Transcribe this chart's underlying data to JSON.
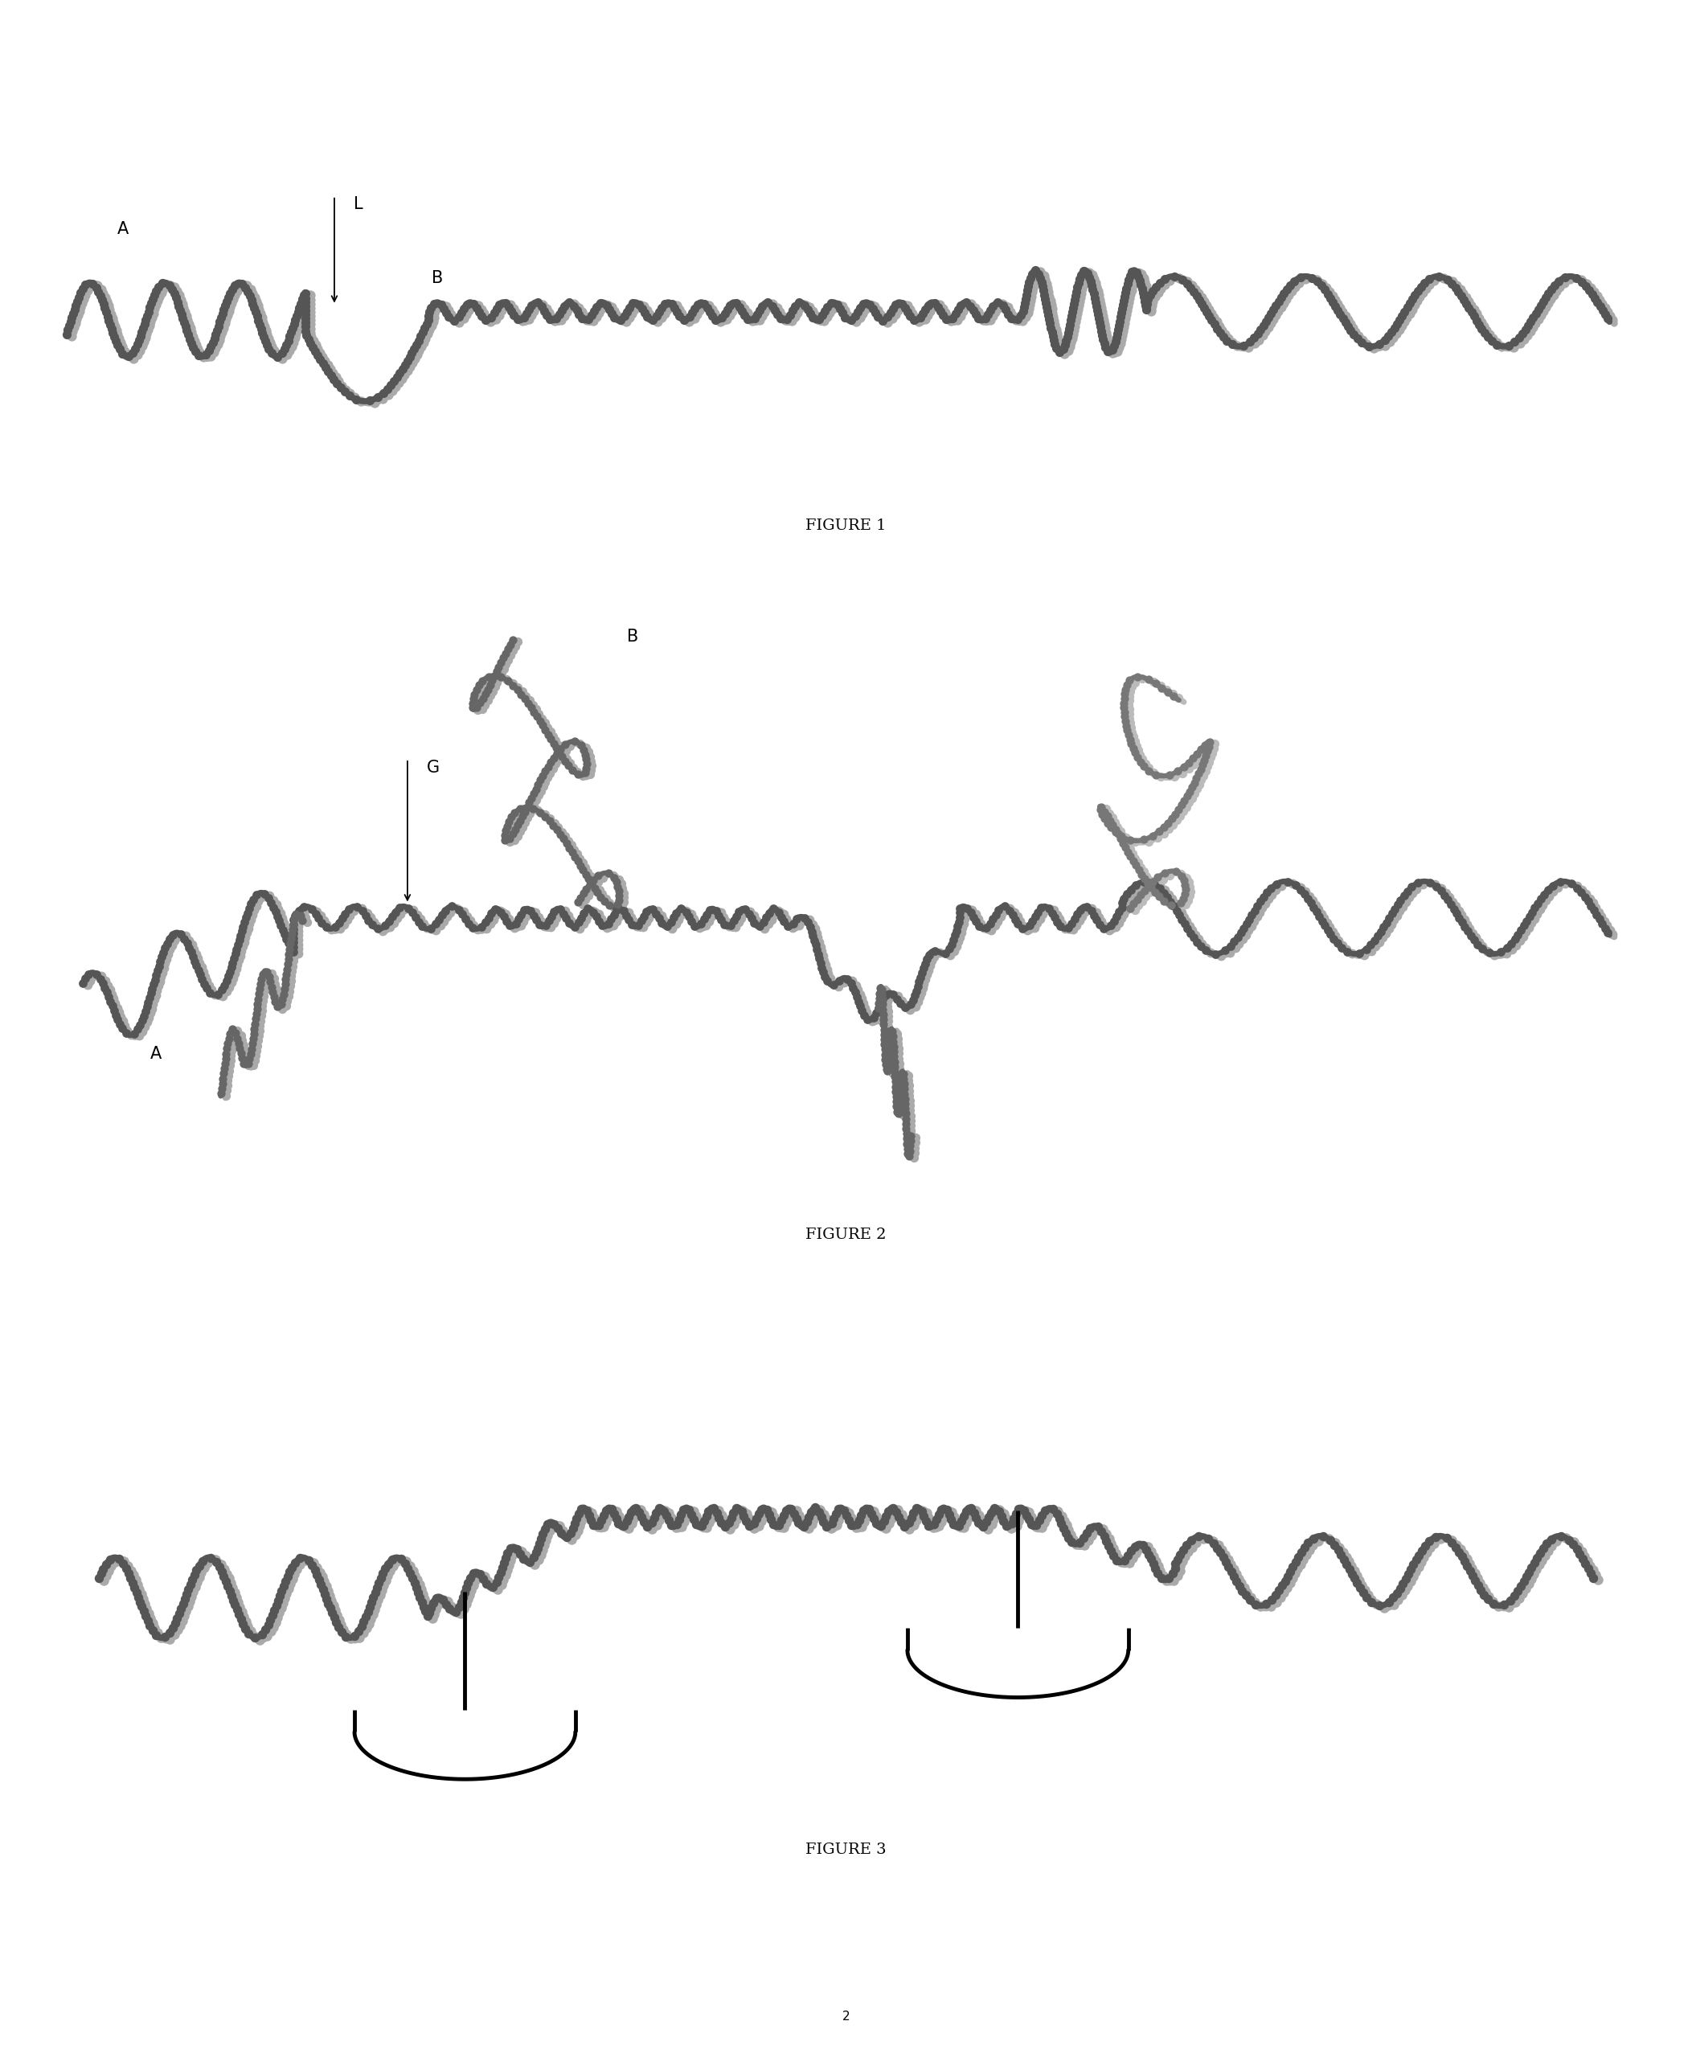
{
  "background_color": "#ffffff",
  "fig_width": 21.05,
  "fig_height": 25.65,
  "chain_dark": "#555555",
  "chain_mid": "#777777",
  "chain_light": "#aaaaaa",
  "bead_dark": "#555555",
  "bead_light": "#aaaaaa",
  "fig1_label": "FIGURE 1",
  "fig2_label": "FIGURE 2",
  "fig3_label": "FIGURE 3",
  "page_num": "2"
}
